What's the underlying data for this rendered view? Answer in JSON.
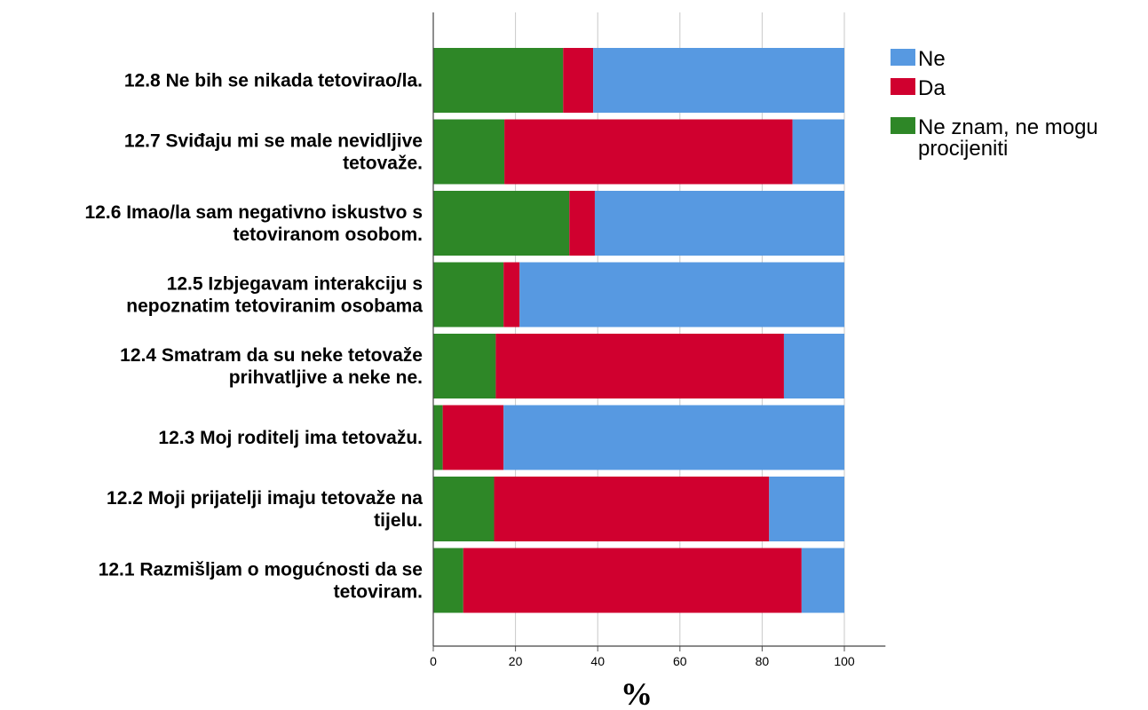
{
  "chart_data": {
    "type": "bar",
    "orientation": "horizontal",
    "stacked": true,
    "title": "",
    "xlabel": "%",
    "ylabel": "",
    "xlim": [
      0,
      110
    ],
    "xticks": [
      0,
      20,
      40,
      60,
      80,
      100
    ],
    "grid": true,
    "legend_position": "top-right",
    "categories": [
      [
        "12.8  Ne bih se nikada tetovirao/la."
      ],
      [
        "12.7  Sviđaju mi se male nevidljive",
        "tetovaže."
      ],
      [
        "12.6  Imao/la sam negativno iskustvo s",
        "tetoviranom osobom."
      ],
      [
        "12.5  Izbjegavam interakciju s",
        "nepoznatim tetoviranim osobama"
      ],
      [
        "12.4  Smatram da su neke tetovaže",
        "prihvatljive a neke ne."
      ],
      [
        "12.3  Moj roditelj ima tetovažu."
      ],
      [
        "12.2  Moji prijatelji imaju tetovaže na",
        "tijelu."
      ],
      [
        "12.1  Razmišljam o mogućnosti da se",
        "tetoviram."
      ]
    ],
    "stack_order": [
      "Ne znam, ne mogu procijeniti",
      "Da",
      "Ne"
    ],
    "series": [
      {
        "name": "Ne",
        "color": "#5799e1",
        "values": [
          61.1,
          12.6,
          60.7,
          79.0,
          14.7,
          82.9,
          18.3,
          10.4
        ]
      },
      {
        "name": "Da",
        "color": "#d0002f",
        "values": [
          7.3,
          70.1,
          6.2,
          3.9,
          70.1,
          14.8,
          66.9,
          82.3
        ]
      },
      {
        "name": "Ne znam, ne mogu procijeniti",
        "color": "#2e8727",
        "values": [
          31.6,
          17.3,
          33.1,
          17.1,
          15.2,
          2.3,
          14.8,
          7.3
        ]
      }
    ],
    "legend": [
      {
        "lines": [
          "Ne"
        ],
        "color": "#5799e1"
      },
      {
        "lines": [
          "Da"
        ],
        "color": "#d0002f"
      },
      {
        "lines": [
          "Ne znam, ne mogu",
          "procijeniti"
        ],
        "color": "#2e8727"
      }
    ]
  }
}
